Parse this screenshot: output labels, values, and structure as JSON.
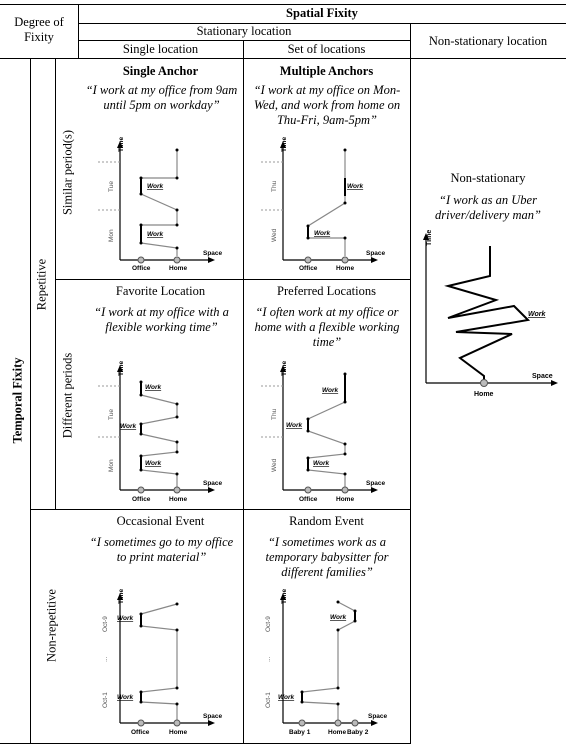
{
  "header": {
    "degree_of_fixity": "Degree of Fixity",
    "spatial_fixity": "Spatial Fixity",
    "stationary_location": "Stationary location",
    "single_location": "Single location",
    "set_of_locations": "Set of locations",
    "non_stationary_location": "Non-stationary location"
  },
  "rows": {
    "temporal_fixity": "Temporal Fixity",
    "repetitive": "Repetitive",
    "similar_periods": "Similar period(s)",
    "different_periods": "Different periods",
    "non_repetitive": "Non-repetitive"
  },
  "cells": {
    "single_anchor": {
      "title": "Single Anchor",
      "quote": "“I work at my office from 9am until 5pm on workday”"
    },
    "multiple_anchors": {
      "title": "Multiple Anchors",
      "quote": "“I work at my office on Mon-Wed, and work from home on Thu-Fri, 9am-5pm”"
    },
    "favorite_location": {
      "title": "Favorite Location",
      "quote": "“I work at my office with a flexible working time”"
    },
    "preferred_locations": {
      "title": "Preferred Locations",
      "quote": "“I often work at my office or home with a flexible working time”"
    },
    "occasional_event": {
      "title": "Occasional Event",
      "quote": "“I sometimes go to my office to print material”"
    },
    "random_event": {
      "title": "Random Event",
      "quote": "“I sometimes work as a temporary babysitter for different families”"
    },
    "non_stationary": {
      "title": "Non-stationary",
      "quote": "“I work as an Uber driver/delivery man”"
    }
  },
  "diagram_labels": {
    "time": "Time",
    "space": "Space",
    "work": "Work",
    "office": "Office",
    "home": "Home",
    "baby1": "Baby 1",
    "baby2": "Baby 2",
    "mon": "Mon",
    "tue": "Tue",
    "wed": "Wed",
    "thu": "Thu",
    "oct1": "Oct-1",
    "oct9": "Oct-9",
    "ellipsis": "..."
  }
}
